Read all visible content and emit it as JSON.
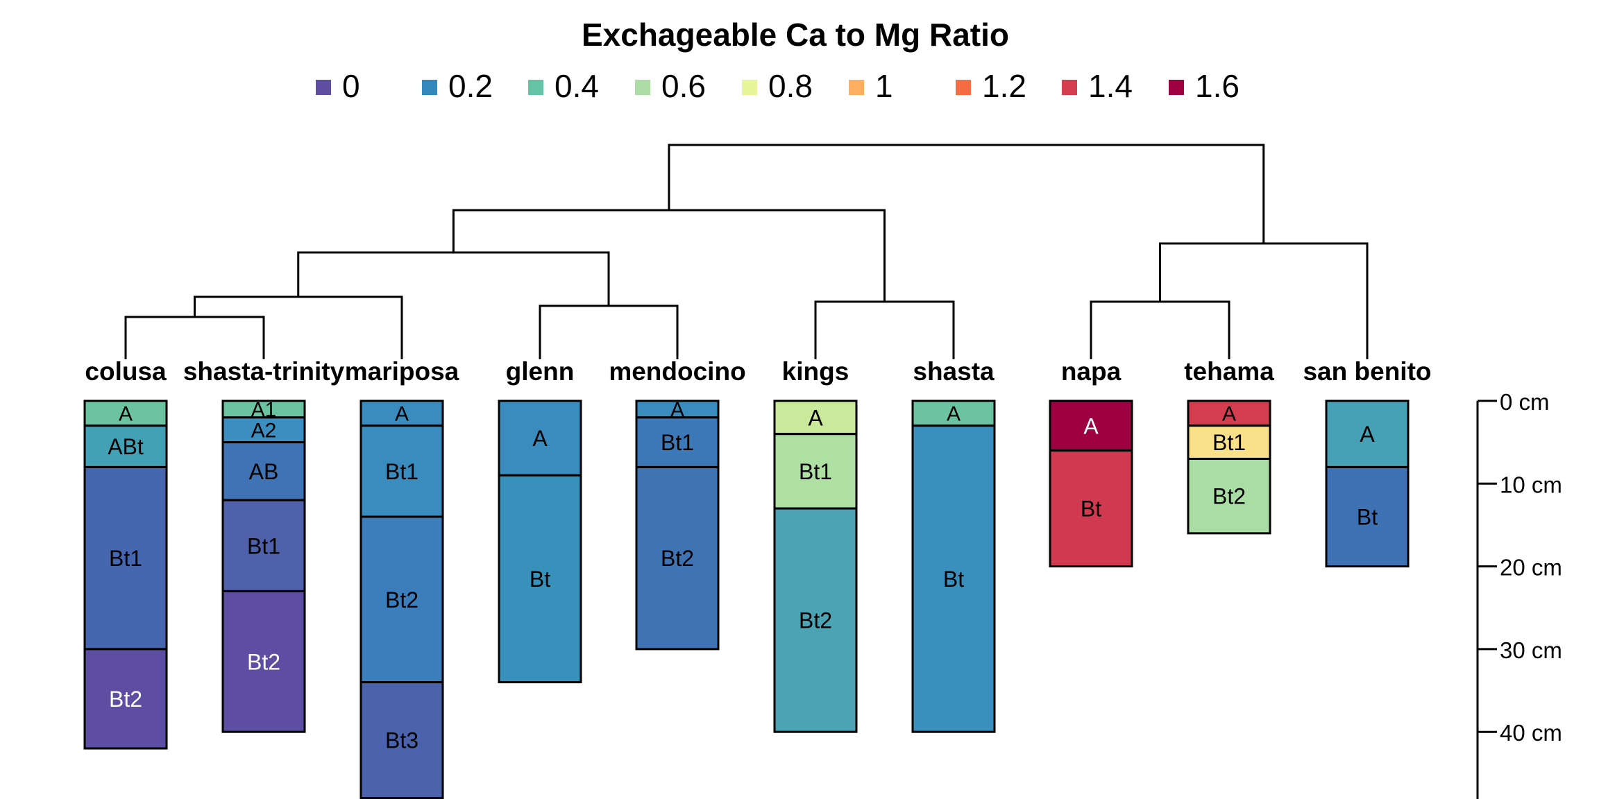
{
  "chart_data": {
    "type": "soil-profile dendrogram",
    "title": "Exchageable Ca to Mg Ratio",
    "legend": {
      "placement": "top",
      "entries": [
        {
          "label": "0",
          "color": "#5E4FA2"
        },
        {
          "label": "0.2",
          "color": "#3288BD"
        },
        {
          "label": "0.4",
          "color": "#66C2A5"
        },
        {
          "label": "0.6",
          "color": "#ABDDA4"
        },
        {
          "label": "0.8",
          "color": "#E6F598"
        },
        {
          "label": "1",
          "color": "#FDAE61"
        },
        {
          "label": "1.2",
          "color": "#F46D43"
        },
        {
          "label": "1.4",
          "color": "#D53E4F"
        },
        {
          "label": "1.6",
          "color": "#9E0142"
        }
      ]
    },
    "depth_axis": {
      "unit": "cm",
      "ticks": [
        0,
        10,
        20,
        30,
        40
      ],
      "tick_labels": [
        "0 cm",
        "10 cm",
        "20 cm",
        "30 cm",
        "40 cm"
      ]
    },
    "profiles": [
      {
        "name": "colusa",
        "horizons": [
          {
            "name": "A",
            "top": 0,
            "bottom": 3,
            "color": "#6CC3A2",
            "text": "#000000"
          },
          {
            "name": "ABt",
            "top": 3,
            "bottom": 8,
            "color": "#43A1B6",
            "text": "#000000"
          },
          {
            "name": "Bt1",
            "top": 8,
            "bottom": 30,
            "color": "#4667B0",
            "text": "#000000"
          },
          {
            "name": "Bt2",
            "top": 30,
            "bottom": 42,
            "color": "#5D4EA3",
            "text": "#ffffff"
          }
        ]
      },
      {
        "name": "shasta-trinity",
        "horizons": [
          {
            "name": "A1",
            "top": 0,
            "bottom": 2,
            "color": "#6CC3A2",
            "text": "#000000"
          },
          {
            "name": "A2",
            "top": 2,
            "bottom": 5,
            "color": "#3C8DC0",
            "text": "#000000"
          },
          {
            "name": "AB",
            "top": 5,
            "bottom": 12,
            "color": "#3F73B5",
            "text": "#000000"
          },
          {
            "name": "Bt1",
            "top": 12,
            "bottom": 23,
            "color": "#5061AC",
            "text": "#000000"
          },
          {
            "name": "Bt2",
            "top": 23,
            "bottom": 40,
            "color": "#5D4EA3",
            "text": "#ffffff"
          }
        ]
      },
      {
        "name": "mariposa",
        "horizons": [
          {
            "name": "A",
            "top": 0,
            "bottom": 3,
            "color": "#3A8CBF",
            "text": "#000000"
          },
          {
            "name": "Bt1",
            "top": 3,
            "bottom": 14,
            "color": "#3A8BBE",
            "text": "#000000"
          },
          {
            "name": "Bt2",
            "top": 14,
            "bottom": 34,
            "color": "#3C7DBB",
            "text": "#000000"
          },
          {
            "name": "Bt3",
            "top": 34,
            "bottom": 48,
            "color": "#4B62AD",
            "text": "#000000"
          }
        ]
      },
      {
        "name": "glenn",
        "horizons": [
          {
            "name": "A",
            "top": 0,
            "bottom": 9,
            "color": "#3A8BBE",
            "text": "#000000"
          },
          {
            "name": "Bt",
            "top": 9,
            "bottom": 34,
            "color": "#3891BA",
            "text": "#000000"
          }
        ]
      },
      {
        "name": "mendocino",
        "horizons": [
          {
            "name": "A",
            "top": 0,
            "bottom": 2,
            "color": "#3A8BBE",
            "text": "#000000"
          },
          {
            "name": "Bt1",
            "top": 2,
            "bottom": 8,
            "color": "#3C77B8",
            "text": "#000000"
          },
          {
            "name": "Bt2",
            "top": 8,
            "bottom": 30,
            "color": "#3F73B4",
            "text": "#000000"
          }
        ]
      },
      {
        "name": "kings",
        "horizons": [
          {
            "name": "A",
            "top": 0,
            "bottom": 4,
            "color": "#CAE99B",
            "text": "#000000"
          },
          {
            "name": "Bt1",
            "top": 4,
            "bottom": 13,
            "color": "#AEDFA3",
            "text": "#000000"
          },
          {
            "name": "Bt2",
            "top": 13,
            "bottom": 40,
            "color": "#4CA3B3",
            "text": "#000000"
          }
        ]
      },
      {
        "name": "shasta",
        "horizons": [
          {
            "name": "A",
            "top": 0,
            "bottom": 3,
            "color": "#6CC3A2",
            "text": "#000000"
          },
          {
            "name": "Bt",
            "top": 3,
            "bottom": 40,
            "color": "#3A90BC",
            "text": "#000000"
          }
        ]
      },
      {
        "name": "napa",
        "horizons": [
          {
            "name": "A",
            "top": 0,
            "bottom": 6,
            "color": "#9E0142",
            "text": "#ffffff"
          },
          {
            "name": "Bt",
            "top": 6,
            "bottom": 20,
            "color": "#D0394F",
            "text": "#000000"
          }
        ]
      },
      {
        "name": "tehama",
        "horizons": [
          {
            "name": "A",
            "top": 0,
            "bottom": 3,
            "color": "#D33D4F",
            "text": "#000000"
          },
          {
            "name": "Bt1",
            "top": 3,
            "bottom": 7,
            "color": "#FBE08A",
            "text": "#000000"
          },
          {
            "name": "Bt2",
            "top": 7,
            "bottom": 16,
            "color": "#AADDA3",
            "text": "#000000"
          }
        ]
      },
      {
        "name": "san benito",
        "horizons": [
          {
            "name": "A",
            "top": 0,
            "bottom": 8,
            "color": "#46A0B6",
            "text": "#000000"
          },
          {
            "name": "Bt",
            "top": 8,
            "bottom": 20,
            "color": "#3F72B5",
            "text": "#000000"
          }
        ]
      }
    ]
  }
}
